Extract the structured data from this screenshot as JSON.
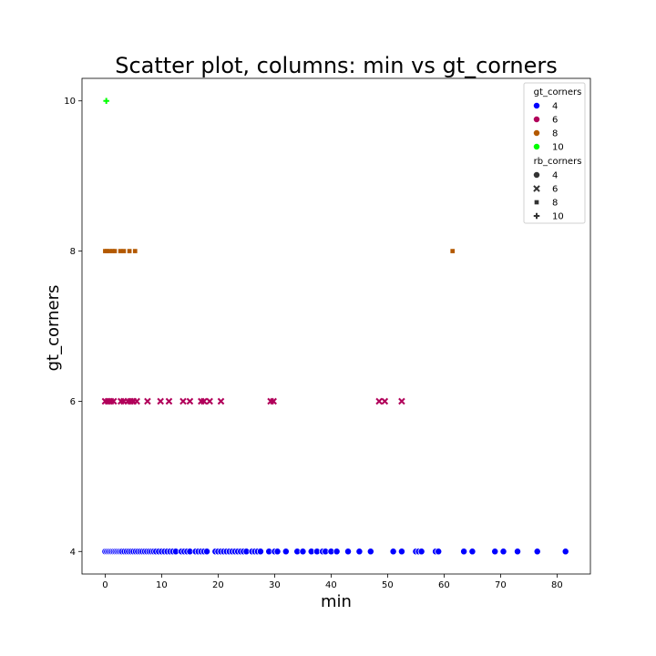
{
  "chart_data": {
    "type": "scatter",
    "title": "Scatter plot, columns: min vs gt_corners",
    "xlabel": "min",
    "ylabel": "gt_corners",
    "xlim": [
      -4.1,
      85.9
    ],
    "ylim": [
      3.7,
      10.3
    ],
    "xticks": [
      0,
      10,
      20,
      30,
      40,
      50,
      60,
      70,
      80
    ],
    "yticks": [
      4,
      6,
      8,
      10
    ],
    "grid": false,
    "legend": {
      "placement": "top-right",
      "hue_title": "gt_corners",
      "hue_entries": [
        {
          "label": "4",
          "color": "#0000ff"
        },
        {
          "label": "6",
          "color": "#b1005a"
        },
        {
          "label": "8",
          "color": "#b35900"
        },
        {
          "label": "10",
          "color": "#00ff00"
        }
      ],
      "style_title": "rb_corners",
      "style_entries": [
        {
          "label": "4",
          "marker": "circle"
        },
        {
          "label": "6",
          "marker": "x"
        },
        {
          "label": "8",
          "marker": "square"
        },
        {
          "label": "10",
          "marker": "plus"
        }
      ]
    },
    "series": [
      {
        "hue": "4",
        "color": "#0000ff",
        "marker": "circle",
        "y": 4,
        "x": [
          0.0,
          0.3,
          0.6,
          0.9,
          1.2,
          1.5,
          1.8,
          2.1,
          2.4,
          2.7,
          3.0,
          3.4,
          3.8,
          4.2,
          4.6,
          5.0,
          5.4,
          5.8,
          6.2,
          6.6,
          7.0,
          7.4,
          7.8,
          8.2,
          8.6,
          9.0,
          9.5,
          10.0,
          10.5,
          11.0,
          11.5,
          12.0,
          12.5,
          13.5,
          14.0,
          14.5,
          15.0,
          16.0,
          16.5,
          17.0,
          17.5,
          18.0,
          19.5,
          20.0,
          20.5,
          21.0,
          21.5,
          22.0,
          22.5,
          23.0,
          23.5,
          24.0,
          24.5,
          25.0,
          26.0,
          26.5,
          27.0,
          27.5,
          29.0,
          30.0,
          30.5,
          32.0,
          34.0,
          35.0,
          36.5,
          37.5,
          38.5,
          39.0,
          40.0,
          41.0,
          43.0,
          45.0,
          47.0,
          51.0,
          52.5,
          55.0,
          55.5,
          56.0,
          58.5,
          59.0,
          63.5,
          65.0,
          69.0,
          70.5,
          73.0,
          76.5,
          81.5
        ]
      },
      {
        "hue": "6",
        "color": "#b1005a",
        "marker": "x",
        "y": 6,
        "x": [
          0.0,
          0.5,
          1.0,
          1.5,
          2.8,
          3.3,
          4.0,
          4.5,
          5.0,
          5.6,
          7.5,
          9.8,
          11.3,
          13.8,
          15.0,
          17.0,
          17.5,
          18.5,
          20.5,
          29.3,
          29.8,
          48.5,
          49.5,
          52.5
        ]
      },
      {
        "hue": "8",
        "color": "#b35900",
        "marker": "square",
        "y": 8,
        "x": [
          0.0,
          0.3,
          0.8,
          1.3,
          1.7,
          2.7,
          3.3,
          4.3,
          5.3,
          61.5
        ]
      },
      {
        "hue": "10",
        "color": "#00ff00",
        "marker": "plus",
        "y": 10,
        "x": [
          0.2
        ]
      }
    ]
  }
}
